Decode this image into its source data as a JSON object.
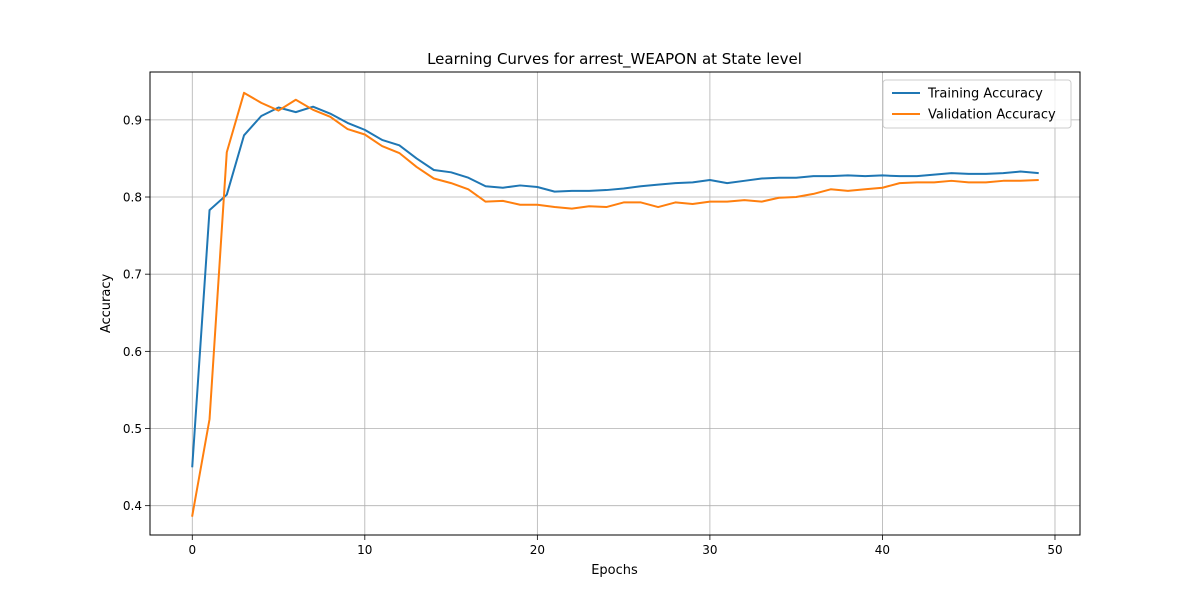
{
  "chart_data": {
    "type": "line",
    "title": "Learning Curves for arrest_WEAPON at State level",
    "xlabel": "Epochs",
    "ylabel": "Accuracy",
    "xlim": [
      -2.45,
      51.45
    ],
    "ylim": [
      0.362,
      0.962
    ],
    "xticks": [
      0,
      10,
      20,
      30,
      40,
      50
    ],
    "yticks": [
      0.4,
      0.5,
      0.6,
      0.7,
      0.8,
      0.9
    ],
    "grid": true,
    "legend_position": "top-right",
    "x": [
      0,
      1,
      2,
      3,
      4,
      5,
      6,
      7,
      8,
      9,
      10,
      11,
      12,
      13,
      14,
      15,
      16,
      17,
      18,
      19,
      20,
      21,
      22,
      23,
      24,
      25,
      26,
      27,
      28,
      29,
      30,
      31,
      32,
      33,
      34,
      35,
      36,
      37,
      38,
      39,
      40,
      41,
      42,
      43,
      44,
      45,
      46,
      47,
      48,
      49
    ],
    "series": [
      {
        "name": "Training Accuracy",
        "color": "#1f77b4",
        "values": [
          0.451,
          0.783,
          0.803,
          0.88,
          0.905,
          0.916,
          0.91,
          0.917,
          0.908,
          0.896,
          0.887,
          0.874,
          0.867,
          0.85,
          0.835,
          0.832,
          0.825,
          0.814,
          0.812,
          0.815,
          0.813,
          0.807,
          0.808,
          0.808,
          0.809,
          0.811,
          0.814,
          0.816,
          0.818,
          0.819,
          0.822,
          0.818,
          0.821,
          0.824,
          0.825,
          0.825,
          0.827,
          0.827,
          0.828,
          0.827,
          0.828,
          0.827,
          0.827,
          0.829,
          0.831,
          0.83,
          0.83,
          0.831,
          0.833,
          0.831
        ]
      },
      {
        "name": "Validation Accuracy",
        "color": "#ff7f0e",
        "values": [
          0.387,
          0.512,
          0.858,
          0.935,
          0.922,
          0.912,
          0.926,
          0.913,
          0.904,
          0.888,
          0.881,
          0.866,
          0.857,
          0.839,
          0.824,
          0.818,
          0.81,
          0.794,
          0.795,
          0.79,
          0.79,
          0.787,
          0.785,
          0.788,
          0.787,
          0.793,
          0.793,
          0.787,
          0.793,
          0.791,
          0.794,
          0.794,
          0.796,
          0.794,
          0.799,
          0.8,
          0.804,
          0.81,
          0.808,
          0.81,
          0.812,
          0.818,
          0.819,
          0.819,
          0.821,
          0.819,
          0.819,
          0.821,
          0.821,
          0.822
        ]
      }
    ]
  }
}
